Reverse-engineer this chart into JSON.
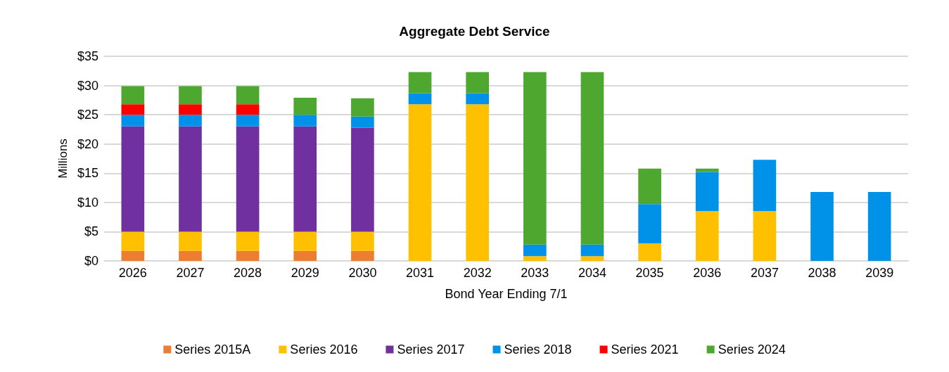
{
  "chart_data": {
    "type": "bar",
    "title": "Aggregate Debt Service",
    "xlabel": "Bond Year Ending 7/1",
    "ylabel": "Millions",
    "categories": [
      "2026",
      "2027",
      "2028",
      "2029",
      "2030",
      "2031",
      "2032",
      "2033",
      "2034",
      "2035",
      "2036",
      "2037",
      "2038",
      "2039"
    ],
    "stacked": true,
    "grid": "y",
    "legend": "bottom",
    "ylim": [
      0,
      35
    ],
    "yticks": [
      {
        "value": 0,
        "label": "$0"
      },
      {
        "value": 5,
        "label": "$5"
      },
      {
        "value": 10,
        "label": "$10"
      },
      {
        "value": 15,
        "label": "$15"
      },
      {
        "value": 20,
        "label": "$20"
      },
      {
        "value": 25,
        "label": "$25"
      },
      {
        "value": 30,
        "label": "$30"
      },
      {
        "value": 35,
        "label": "$35"
      }
    ],
    "series": [
      {
        "name": "Series 2015A",
        "color": "#ed7d31",
        "values": [
          1.7,
          1.7,
          1.7,
          1.7,
          1.7,
          null,
          null,
          null,
          null,
          null,
          null,
          null,
          null,
          null
        ]
      },
      {
        "name": "Series 2016",
        "color": "#ffc000",
        "values": [
          3.3,
          3.3,
          3.3,
          3.3,
          3.3,
          26.8,
          26.8,
          0.8,
          0.8,
          3.0,
          8.5,
          8.5,
          null,
          null
        ]
      },
      {
        "name": "Series 2017",
        "color": "#7030a0",
        "values": [
          18,
          18,
          18,
          18,
          17.8,
          null,
          null,
          null,
          null,
          null,
          null,
          null,
          null,
          null
        ]
      },
      {
        "name": "Series 2018",
        "color": "#0092e8",
        "values": [
          2,
          2,
          2,
          2,
          1.9,
          1.9,
          1.9,
          2.0,
          2.0,
          6.7,
          6.7,
          8.8,
          11.8,
          11.8
        ]
      },
      {
        "name": "Series 2021",
        "color": "#ff0000",
        "values": [
          1.8,
          1.8,
          1.8,
          null,
          null,
          null,
          null,
          null,
          null,
          null,
          null,
          null,
          null,
          null
        ]
      },
      {
        "name": "Series 2024",
        "color": "#4ea72e",
        "values": [
          3.1,
          3.1,
          3.1,
          2.9,
          3.1,
          3.6,
          3.6,
          29.5,
          29.5,
          6.1,
          0.6,
          null,
          null,
          null
        ]
      }
    ]
  }
}
